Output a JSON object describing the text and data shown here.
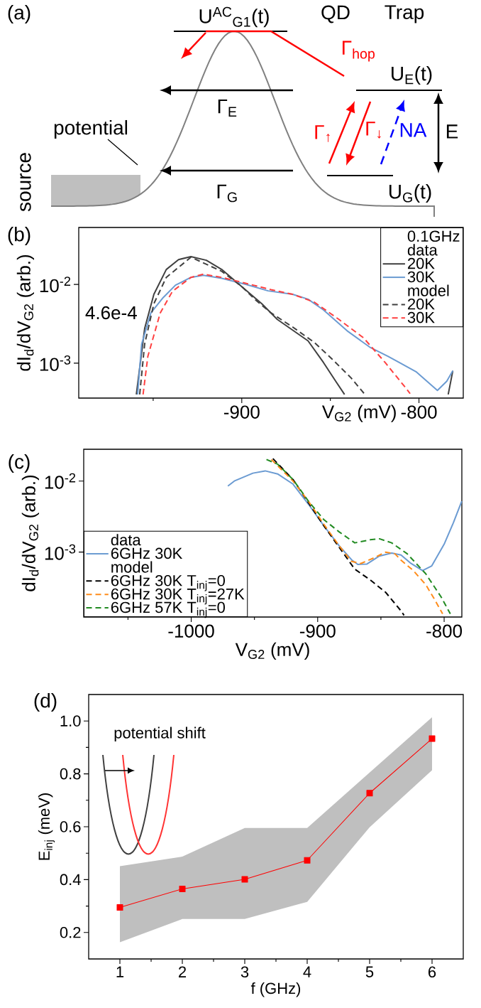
{
  "chart_data": [
    {
      "type": "other",
      "annotations": [
        "(a)",
        "U$^{AC}$$_{G1}$(t)",
        "QD",
        "Trap",
        "Γ$_{hop}$",
        "U$_{E}$(t)",
        "Γ$_{E}$",
        "E",
        "potential",
        "Γ$_{↑}$",
        "Γ$_{↓}$",
        "NA",
        "source",
        "Γ$_{G}$",
        "U$_{G}$(t)"
      ]
    },
    {
      "type": "line",
      "xlabel": "V$_{G2}$ (mV)",
      "ylabel": "dI$_{d}$/dV$_{G2}$ (arb.)",
      "log": "y",
      "xlim": [
        -992,
        -775
      ],
      "ylim": [
        0.00036,
        0.053
      ],
      "xticks": [
        {
          "value": -950,
          "label": null
        },
        -900,
        {
          "value": -850,
          "label": null
        },
        -800
      ],
      "yticks": [
        {
          "value": 0.001,
          "label": "10$^{-3}$"
        },
        {
          "value": 0.01,
          "label": "10$^{-2}$"
        }
      ],
      "legend": "top right",
      "legend_title": "0.1GHz",
      "annotations": [
        "(b)",
        "4.6e-4",
        "data",
        "model"
      ],
      "series": [
        {
          "name": "20K",
          "color": "#404040",
          "line_style": "solid",
          "x": [
            -959.5,
            -954.8,
            -949.6,
            -942.6,
            -935.7,
            -928.7,
            -920,
            -911.3,
            -900,
            -888.7,
            -880,
            -862.6,
            -853.9,
            -847,
            -842,
            -812,
            -783.5,
            -780.9
          ],
          "values": [
            0.0004,
            0.00276,
            0.0075,
            0.0155,
            0.0207,
            0.0226,
            0.0203,
            0.0155,
            0.0094,
            0.0057,
            0.0036,
            0.00192,
            0.00102,
            0.00059,
            0.0004,
            null,
            0.0004,
            0.0008
          ]
        },
        {
          "name": "30K",
          "color": "#6b9bd2",
          "line_style": "solid",
          "x": [
            -958.8,
            -956.5,
            -951.3,
            -944.3,
            -937.4,
            -928.7,
            -921.7,
            -911.3,
            -897.4,
            -885.2,
            -871.3,
            -862.6,
            -853.9,
            -840,
            -827.8,
            -817.4,
            -801.7,
            -789.6,
            -784.3,
            -780.9
          ],
          "values": [
            0.0004,
            0.00175,
            0.00435,
            0.00684,
            0.0098,
            0.0123,
            0.0131,
            0.012,
            0.01,
            0.0083,
            0.0075,
            0.0065,
            0.00475,
            0.00252,
            0.0016,
            0.00122,
            0.00078,
            0.00045,
            0.00059,
            0.0008
          ]
        },
        {
          "name": "20K",
          "color": "#404040",
          "line_style": "dashed",
          "x": [
            -957.6,
            -954.8,
            -949.6,
            -942.6,
            -928.7,
            -911.3,
            -900,
            -892.2,
            -883.5,
            -871.3,
            -859.1,
            -848.7,
            -838.3,
            -830.5
          ],
          "values": [
            0.0004,
            0.00175,
            0.0057,
            0.0123,
            0.0222,
            0.0147,
            0.0094,
            0.00635,
            0.00435,
            0.00288,
            0.00184,
            0.00111,
            0.00065,
            0.0004
          ]
        },
        {
          "name": "30K",
          "color": "#ff4040",
          "line_style": "dashed",
          "x": [
            -955.7,
            -953,
            -946,
            -939.1,
            -928.7,
            -921.7,
            -911.3,
            -897.4,
            -883.5,
            -871.3,
            -859.1,
            -845.2,
            -831.3,
            -819.1,
            -807,
            -805
          ],
          "values": [
            0.0004,
            0.00122,
            0.00435,
            0.0082,
            0.0123,
            0.0135,
            0.0123,
            0.0103,
            0.0086,
            0.0075,
            0.00597,
            0.0036,
            0.0021,
            0.00102,
            0.00047,
            0.00041
          ]
        }
      ]
    },
    {
      "type": "line",
      "xlabel": "V$_{G2}$ (mV)",
      "ylabel": "dI$_{d}$/dV$_{G2}$ (arb.)",
      "log": "y",
      "xlim": [
        -1085,
        -786
      ],
      "ylim": [
        0.000122,
        0.028
      ],
      "xticks": [
        {
          "value": -1050,
          "label": null
        },
        -1000,
        {
          "value": -950,
          "label": null
        },
        -900,
        {
          "value": -850,
          "label": null
        },
        -800
      ],
      "yticks": [
        {
          "value": 0.001,
          "label": "10$^{-3}$"
        },
        {
          "value": 0.01,
          "label": "10$^{-2}$"
        }
      ],
      "legend": "bottom left",
      "annotations": [
        "(c)",
        "data",
        "model"
      ],
      "series": [
        {
          "name": "6GHz 30K",
          "color": "#6b9bd2",
          "line_style": "solid",
          "x": [
            -971,
            -965.9,
            -951.2,
            -941.5,
            -931.7,
            -919.5,
            -907.3,
            -895.1,
            -882.9,
            -873.2,
            -868.3,
            -861,
            -851.2,
            -841.5,
            -834.1,
            -826.8,
            -817.1,
            -809.8,
            -800,
            -792.7,
            -786.1
          ],
          "values": [
            0.0085,
            0.01,
            0.0129,
            0.0139,
            0.0126,
            0.00905,
            0.00472,
            0.00234,
            0.00122,
            0.00078,
            0.00067,
            0.00068,
            0.00088,
            0.00097,
            0.00091,
            0.000705,
            0.00055,
            0.00064,
            0.00129,
            0.00259,
            0.0052
          ]
        },
        {
          "name": "6GHz 30K T$_{inj}$=0",
          "color": "#000000",
          "line_style": "dashed",
          "x": [
            -935.4,
            -919.5,
            -907.3,
            -895.1,
            -882.9,
            -870.7,
            -858.5,
            -846.3,
            -834.1,
            -831.7
          ],
          "values": [
            0.0207,
            0.0105,
            0.00496,
            0.00234,
            0.00116,
            0.000577,
            0.000406,
            0.000272,
            0.000149,
            0.000129
          ]
        },
        {
          "name": "6GHz 30K T$_{inj}$=27K",
          "color": "#ff8c1a",
          "line_style": "dashed",
          "x": [
            -936.6,
            -919.5,
            -907.3,
            -895.1,
            -882.9,
            -873.2,
            -865.9,
            -856.1,
            -846.3,
            -839,
            -834.1,
            -824.4,
            -814.6,
            -807.3,
            -801.2
          ],
          "values": [
            0.0201,
            0.01,
            0.0052,
            0.00246,
            0.00122,
            0.00074,
            0.00069,
            0.00082,
            0.001,
            0.00095,
            0.00077,
            0.00055,
            0.00035,
            0.000212,
            0.000135
          ]
        },
        {
          "name": "6GHz 57K T$_{inj}$=0",
          "color": "#228b22",
          "line_style": "dashed",
          "x": [
            -940.5,
            -931.7,
            -919.5,
            -907.3,
            -895.1,
            -882.9,
            -870.7,
            -858.5,
            -851.2,
            -841.5,
            -829.3,
            -814.6,
            -802.4,
            -795.1
          ],
          "values": [
            0.0201,
            0.0173,
            0.0105,
            0.0052,
            0.00286,
            0.00192,
            0.00135,
            0.00149,
            0.00154,
            0.00135,
            0.00095,
            0.000497,
            0.000234,
            0.000135
          ]
        }
      ]
    },
    {
      "type": "line",
      "xlabel": "f (GHz)",
      "ylabel": "E$_{inj}$ (meV)",
      "xlim": [
        0.5,
        6.5
      ],
      "ylim": [
        0.1,
        1.1
      ],
      "xticks": [
        1,
        {
          "value": 1.5,
          "label": null
        },
        2,
        {
          "value": 2.5,
          "label": null
        },
        3,
        {
          "value": 3.5,
          "label": null
        },
        4,
        {
          "value": 4.5,
          "label": null
        },
        5,
        {
          "value": 5.5,
          "label": null
        },
        6
      ],
      "yticks": [
        {
          "value": 0.2,
          "label": "0.2"
        },
        {
          "value": 0.3,
          "label": null
        },
        {
          "value": 0.4,
          "label": "0.4"
        },
        {
          "value": 0.5,
          "label": null
        },
        {
          "value": 0.6,
          "label": "0.6"
        },
        {
          "value": 0.7,
          "label": null
        },
        {
          "value": 0.8,
          "label": "0.8"
        },
        {
          "value": 0.9,
          "label": null
        },
        {
          "value": 1.0,
          "label": "1.0"
        }
      ],
      "annotations": [
        "(d)",
        "potential shift"
      ],
      "series": [
        {
          "color": "#ff0000",
          "marker": "square",
          "line_style": "solid",
          "x": [
            1,
            2,
            3,
            4,
            5,
            6
          ],
          "values": [
            0.295,
            0.365,
            0.401,
            0.473,
            0.727,
            0.933
          ],
          "lower": [
            0.163,
            0.251,
            0.251,
            0.316,
            0.598,
            0.814
          ],
          "upper": [
            0.451,
            0.487,
            0.595,
            0.595,
            0.805,
            1.014
          ]
        }
      ]
    }
  ]
}
